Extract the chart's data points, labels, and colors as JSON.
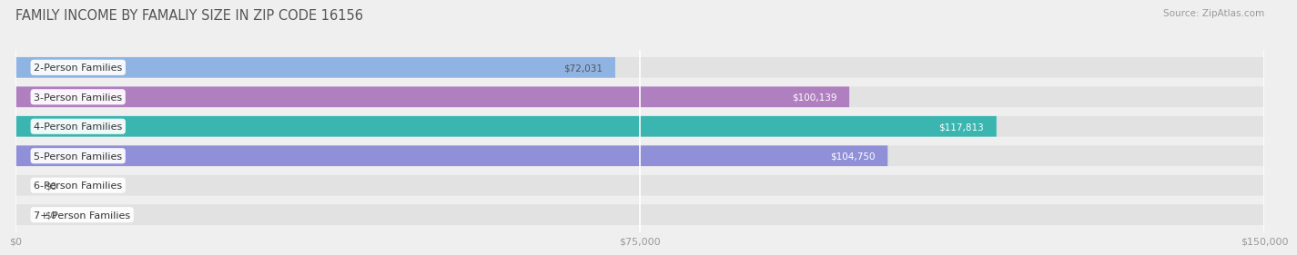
{
  "title": "FAMILY INCOME BY FAMALIY SIZE IN ZIP CODE 16156",
  "source": "Source: ZipAtlas.com",
  "categories": [
    "2-Person Families",
    "3-Person Families",
    "4-Person Families",
    "5-Person Families",
    "6-Person Families",
    "7+ Person Families"
  ],
  "values": [
    72031,
    100139,
    117813,
    104750,
    0,
    0
  ],
  "bar_colors": [
    "#8fb4e3",
    "#b07fc0",
    "#3ab5b0",
    "#9090d8",
    "#f799aa",
    "#f5c98a"
  ],
  "label_colors": [
    "#555555",
    "#ffffff",
    "#ffffff",
    "#ffffff",
    "#555555",
    "#555555"
  ],
  "value_labels": [
    "$72,031",
    "$100,139",
    "$117,813",
    "$104,750",
    "$0",
    "$0"
  ],
  "xmax": 150000,
  "xticks": [
    0,
    75000,
    150000
  ],
  "xticklabels": [
    "$0",
    "$75,000",
    "$150,000"
  ],
  "bg_color": "#efefef",
  "bar_bg_color": "#e2e2e2",
  "title_fontsize": 10.5,
  "source_fontsize": 7.5,
  "label_fontsize": 8,
  "value_fontsize": 7.5,
  "bar_height": 0.7
}
